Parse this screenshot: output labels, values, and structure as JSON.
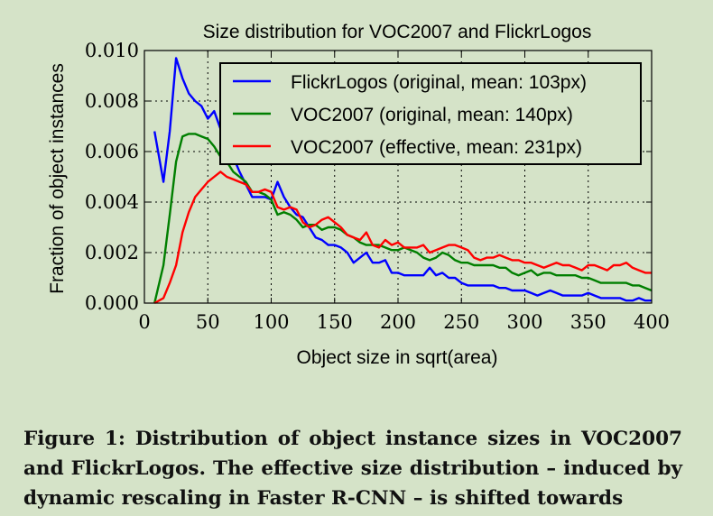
{
  "chart_data": {
    "type": "line",
    "title": "Size distribution for VOC2007 and FlickrLogos",
    "xlabel": "Object size in sqrt(area)",
    "ylabel": "Fraction of object instances",
    "xlim": [
      0,
      400
    ],
    "ylim": [
      0,
      0.01
    ],
    "xticks": [
      "0",
      "50",
      "100",
      "150",
      "200",
      "250",
      "300",
      "350",
      "400"
    ],
    "yticks": [
      "0.000",
      "0.002",
      "0.004",
      "0.006",
      "0.008",
      "0.010"
    ],
    "grid": true,
    "legend_position": "top-right",
    "series": [
      {
        "name": "FlickrLogos (original, mean: 103px)",
        "color": "#0000ff",
        "x": [
          8,
          15,
          20,
          25,
          30,
          35,
          40,
          45,
          50,
          55,
          60,
          65,
          70,
          75,
          80,
          85,
          90,
          95,
          100,
          105,
          110,
          115,
          120,
          125,
          130,
          135,
          140,
          145,
          150,
          155,
          160,
          165,
          170,
          175,
          180,
          185,
          190,
          195,
          200,
          205,
          210,
          215,
          220,
          225,
          230,
          235,
          240,
          245,
          250,
          255,
          260,
          265,
          270,
          275,
          280,
          285,
          290,
          295,
          300,
          305,
          310,
          315,
          320,
          325,
          330,
          335,
          340,
          345,
          350,
          355,
          360,
          365,
          370,
          375,
          380,
          385,
          390,
          395,
          400
        ],
        "y": [
          0.0068,
          0.0048,
          0.0068,
          0.0097,
          0.0089,
          0.0083,
          0.008,
          0.0078,
          0.0073,
          0.0076,
          0.0069,
          0.0064,
          0.0058,
          0.0052,
          0.0047,
          0.0042,
          0.0042,
          0.0042,
          0.0041,
          0.0048,
          0.0042,
          0.0038,
          0.0035,
          0.0034,
          0.003,
          0.0026,
          0.0025,
          0.0023,
          0.0023,
          0.0022,
          0.002,
          0.0016,
          0.0018,
          0.002,
          0.0016,
          0.0016,
          0.0017,
          0.0012,
          0.0012,
          0.0011,
          0.0011,
          0.0011,
          0.0011,
          0.0014,
          0.0011,
          0.0012,
          0.001,
          0.001,
          0.0008,
          0.0007,
          0.0007,
          0.0007,
          0.0007,
          0.0007,
          0.0006,
          0.0006,
          0.0005,
          0.0005,
          0.0005,
          0.0004,
          0.0003,
          0.0004,
          0.0005,
          0.0004,
          0.0003,
          0.0003,
          0.0003,
          0.0003,
          0.0004,
          0.0003,
          0.0002,
          0.0002,
          0.0002,
          0.0002,
          0.0001,
          0.0001,
          0.0002,
          0.0001,
          0.0001
        ]
      },
      {
        "name": "VOC2007 (original, mean: 140px)",
        "color": "#007f00",
        "x": [
          8,
          15,
          20,
          25,
          30,
          35,
          40,
          45,
          50,
          55,
          60,
          65,
          70,
          75,
          80,
          85,
          90,
          95,
          100,
          105,
          110,
          115,
          120,
          125,
          130,
          135,
          140,
          145,
          150,
          155,
          160,
          165,
          170,
          175,
          180,
          185,
          190,
          195,
          200,
          205,
          210,
          215,
          220,
          225,
          230,
          235,
          240,
          245,
          250,
          255,
          260,
          265,
          270,
          275,
          280,
          285,
          290,
          295,
          300,
          305,
          310,
          315,
          320,
          325,
          330,
          335,
          340,
          345,
          350,
          355,
          360,
          365,
          370,
          375,
          380,
          385,
          390,
          395,
          400
        ],
        "y": [
          0.0,
          0.0015,
          0.0035,
          0.0056,
          0.0066,
          0.0067,
          0.0067,
          0.0066,
          0.0065,
          0.0062,
          0.0058,
          0.0056,
          0.0052,
          0.005,
          0.0048,
          0.0044,
          0.0044,
          0.0043,
          0.0041,
          0.0035,
          0.0036,
          0.0035,
          0.0033,
          0.003,
          0.0031,
          0.0031,
          0.0029,
          0.003,
          0.003,
          0.0029,
          0.0027,
          0.0026,
          0.0024,
          0.0023,
          0.0023,
          0.0023,
          0.0022,
          0.0021,
          0.0021,
          0.0022,
          0.0021,
          0.002,
          0.0018,
          0.0017,
          0.0018,
          0.002,
          0.0019,
          0.0017,
          0.0016,
          0.0016,
          0.0015,
          0.0015,
          0.0015,
          0.0015,
          0.0014,
          0.0014,
          0.0012,
          0.0011,
          0.0012,
          0.0013,
          0.0011,
          0.0012,
          0.0012,
          0.0011,
          0.0011,
          0.0011,
          0.0011,
          0.001,
          0.001,
          0.0009,
          0.0008,
          0.0008,
          0.0008,
          0.0008,
          0.0008,
          0.0007,
          0.0007,
          0.0006,
          0.0005
        ]
      },
      {
        "name": "VOC2007 (effective, mean: 231px)",
        "color": "#ff0000",
        "x": [
          8,
          15,
          20,
          25,
          30,
          35,
          40,
          45,
          50,
          55,
          60,
          65,
          70,
          75,
          80,
          85,
          90,
          95,
          100,
          105,
          110,
          115,
          120,
          125,
          130,
          135,
          140,
          145,
          150,
          155,
          160,
          165,
          170,
          175,
          180,
          185,
          190,
          195,
          200,
          205,
          210,
          215,
          220,
          225,
          230,
          235,
          240,
          245,
          250,
          255,
          260,
          265,
          270,
          275,
          280,
          285,
          290,
          295,
          300,
          305,
          310,
          315,
          320,
          325,
          330,
          335,
          340,
          345,
          350,
          355,
          360,
          365,
          370,
          375,
          380,
          385,
          390,
          395,
          400
        ],
        "y": [
          0.0,
          0.0002,
          0.0008,
          0.0015,
          0.0028,
          0.0036,
          0.0042,
          0.0045,
          0.0048,
          0.005,
          0.0052,
          0.005,
          0.0049,
          0.0048,
          0.0047,
          0.0044,
          0.0044,
          0.0045,
          0.0044,
          0.0038,
          0.0037,
          0.0038,
          0.0037,
          0.0032,
          0.003,
          0.0031,
          0.0033,
          0.0034,
          0.0032,
          0.003,
          0.0027,
          0.0026,
          0.0025,
          0.0028,
          0.0023,
          0.0022,
          0.0025,
          0.0023,
          0.0024,
          0.0022,
          0.0022,
          0.0022,
          0.0023,
          0.002,
          0.0021,
          0.0022,
          0.0023,
          0.0023,
          0.0022,
          0.0021,
          0.0018,
          0.0017,
          0.0018,
          0.0018,
          0.0019,
          0.0018,
          0.0017,
          0.0017,
          0.0016,
          0.0016,
          0.0015,
          0.0014,
          0.0015,
          0.0016,
          0.0015,
          0.0015,
          0.0014,
          0.0013,
          0.0015,
          0.0015,
          0.0014,
          0.0013,
          0.0015,
          0.0015,
          0.0016,
          0.0014,
          0.0013,
          0.0012,
          0.0012
        ]
      }
    ]
  },
  "caption": "Figure 1: Distribution of object instance sizes in VOC2007 and FlickrLogos. The effective size distribution – induced by dynamic rescaling in Faster R-CNN – is shifted towards"
}
